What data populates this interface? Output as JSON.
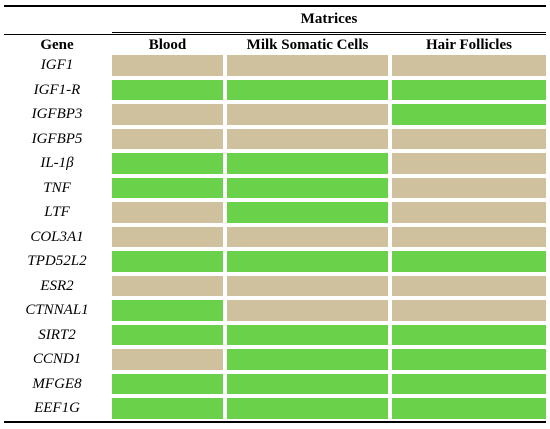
{
  "header": {
    "matrices_label": "Matrices",
    "gene_label": "Gene",
    "columns": [
      "Blood",
      "Milk Somatic Cells",
      "Hair Follicles"
    ]
  },
  "colors": {
    "green": "#6ad14a",
    "tan": "#cfc19e"
  },
  "rows": [
    {
      "gene": "IGF1",
      "cells": [
        "tan",
        "tan",
        "tan"
      ]
    },
    {
      "gene": "IGF1-R",
      "cells": [
        "green",
        "green",
        "green"
      ]
    },
    {
      "gene": "IGFBP3",
      "cells": [
        "tan",
        "tan",
        "green"
      ]
    },
    {
      "gene": "IGFBP5",
      "cells": [
        "tan",
        "tan",
        "tan"
      ]
    },
    {
      "gene": "IL-1β",
      "cells": [
        "green",
        "green",
        "tan"
      ]
    },
    {
      "gene": "TNF",
      "cells": [
        "green",
        "green",
        "tan"
      ]
    },
    {
      "gene": "LTF",
      "cells": [
        "tan",
        "green",
        "tan"
      ]
    },
    {
      "gene": "COL3A1",
      "cells": [
        "tan",
        "tan",
        "tan"
      ]
    },
    {
      "gene": "TPD52L2",
      "cells": [
        "green",
        "green",
        "green"
      ]
    },
    {
      "gene": "ESR2",
      "cells": [
        "tan",
        "tan",
        "tan"
      ]
    },
    {
      "gene": "CTNNAL1",
      "cells": [
        "green",
        "tan",
        "tan"
      ]
    },
    {
      "gene": "SIRT2",
      "cells": [
        "green",
        "green",
        "green"
      ]
    },
    {
      "gene": "CCND1",
      "cells": [
        "tan",
        "green",
        "green"
      ]
    },
    {
      "gene": "MFGE8",
      "cells": [
        "green",
        "green",
        "green"
      ]
    },
    {
      "gene": "EEF1G",
      "cells": [
        "green",
        "green",
        "green"
      ]
    }
  ]
}
